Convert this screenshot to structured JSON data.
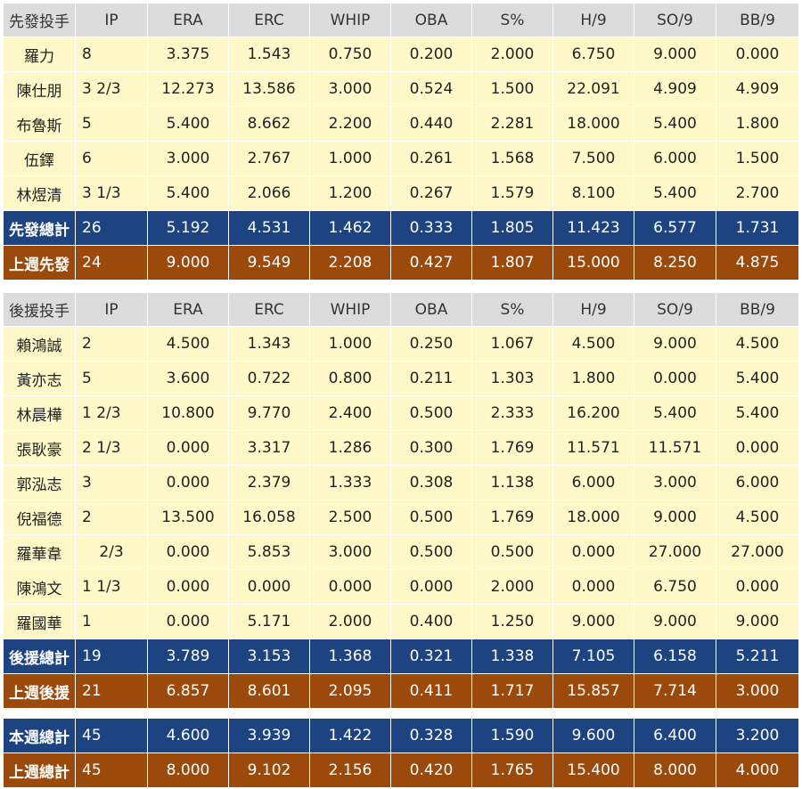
{
  "columns": [
    "IP",
    "ERA",
    "ERC",
    "WHIP",
    "OBA",
    "S%",
    "H/9",
    "SO/9",
    "BB/9"
  ],
  "starters": {
    "header_label": "先發投手",
    "rows": [
      {
        "name": "羅力",
        "IP": "8",
        "ERA": "3.375",
        "ERC": "1.543",
        "WHIP": "0.750",
        "OBA": "0.200",
        "S%": "2.000",
        "H/9": "6.750",
        "SO/9": "9.000",
        "BB/9": "0.000"
      },
      {
        "name": "陳仕朋",
        "IP": "3 2/3",
        "ERA": "12.273",
        "ERC": "13.586",
        "WHIP": "3.000",
        "OBA": "0.524",
        "S%": "1.500",
        "H/9": "22.091",
        "SO/9": "4.909",
        "BB/9": "4.909"
      },
      {
        "name": "布魯斯",
        "IP": "5",
        "ERA": "5.400",
        "ERC": "8.662",
        "WHIP": "2.200",
        "OBA": "0.440",
        "S%": "2.281",
        "H/9": "18.000",
        "SO/9": "5.400",
        "BB/9": "1.800"
      },
      {
        "name": "伍鐸",
        "IP": "6",
        "ERA": "3.000",
        "ERC": "2.767",
        "WHIP": "1.000",
        "OBA": "0.261",
        "S%": "1.568",
        "H/9": "7.500",
        "SO/9": "6.000",
        "BB/9": "1.500"
      },
      {
        "name": "林煜清",
        "IP": "3 1/3",
        "ERA": "5.400",
        "ERC": "2.066",
        "WHIP": "1.200",
        "OBA": "0.267",
        "S%": "1.579",
        "H/9": "8.100",
        "SO/9": "5.400",
        "BB/9": "2.700"
      }
    ],
    "total": {
      "name": "先發總計",
      "IP": "26",
      "ERA": "5.192",
      "ERC": "4.531",
      "WHIP": "1.462",
      "OBA": "0.333",
      "S%": "1.805",
      "H/9": "11.423",
      "SO/9": "6.577",
      "BB/9": "1.731"
    },
    "last_week": {
      "name": "上週先發",
      "IP": "24",
      "ERA": "9.000",
      "ERC": "9.549",
      "WHIP": "2.208",
      "OBA": "0.427",
      "S%": "1.807",
      "H/9": "15.000",
      "SO/9": "8.250",
      "BB/9": "4.875"
    }
  },
  "relievers": {
    "header_label": "後援投手",
    "rows": [
      {
        "name": "賴鴻誠",
        "IP": "2",
        "ERA": "4.500",
        "ERC": "1.343",
        "WHIP": "1.000",
        "OBA": "0.250",
        "S%": "1.067",
        "H/9": "4.500",
        "SO/9": "9.000",
        "BB/9": "4.500"
      },
      {
        "name": "黃亦志",
        "IP": "5",
        "ERA": "3.600",
        "ERC": "0.722",
        "WHIP": "0.800",
        "OBA": "0.211",
        "S%": "1.303",
        "H/9": "1.800",
        "SO/9": "0.000",
        "BB/9": "5.400"
      },
      {
        "name": "林晨樺",
        "IP": "1 2/3",
        "ERA": "10.800",
        "ERC": "9.770",
        "WHIP": "2.400",
        "OBA": "0.500",
        "S%": "2.333",
        "H/9": "16.200",
        "SO/9": "5.400",
        "BB/9": "5.400"
      },
      {
        "name": "張耿豪",
        "IP": "2 1/3",
        "ERA": "0.000",
        "ERC": "3.317",
        "WHIP": "1.286",
        "OBA": "0.300",
        "S%": "1.769",
        "H/9": "11.571",
        "SO/9": "11.571",
        "BB/9": "0.000"
      },
      {
        "name": "郭泓志",
        "IP": "3",
        "ERA": "0.000",
        "ERC": "2.379",
        "WHIP": "1.333",
        "OBA": "0.308",
        "S%": "1.138",
        "H/9": "6.000",
        "SO/9": "3.000",
        "BB/9": "6.000"
      },
      {
        "name": "倪福德",
        "IP": "2",
        "ERA": "13.500",
        "ERC": "16.058",
        "WHIP": "2.500",
        "OBA": "0.500",
        "S%": "1.769",
        "H/9": "18.000",
        "SO/9": "9.000",
        "BB/9": "4.500"
      },
      {
        "name": "羅華韋",
        "IP": "2/3",
        "ERA": "0.000",
        "ERC": "5.853",
        "WHIP": "3.000",
        "OBA": "0.500",
        "S%": "0.500",
        "H/9": "0.000",
        "SO/9": "27.000",
        "BB/9": "27.000"
      },
      {
        "name": "陳鴻文",
        "IP": "1 1/3",
        "ERA": "0.000",
        "ERC": "0.000",
        "WHIP": "0.000",
        "OBA": "0.000",
        "S%": "2.000",
        "H/9": "0.000",
        "SO/9": "6.750",
        "BB/9": "0.000"
      },
      {
        "name": "羅國華",
        "IP": "1",
        "ERA": "0.000",
        "ERC": "5.171",
        "WHIP": "2.000",
        "OBA": "0.400",
        "S%": "1.250",
        "H/9": "9.000",
        "SO/9": "9.000",
        "BB/9": "9.000"
      }
    ],
    "total": {
      "name": "後援總計",
      "IP": "19",
      "ERA": "3.789",
      "ERC": "3.153",
      "WHIP": "1.368",
      "OBA": "0.321",
      "S%": "1.338",
      "H/9": "7.105",
      "SO/9": "6.158",
      "BB/9": "5.211"
    },
    "last_week": {
      "name": "上週後援",
      "IP": "21",
      "ERA": "6.857",
      "ERC": "8.601",
      "WHIP": "2.095",
      "OBA": "0.411",
      "S%": "1.717",
      "H/9": "15.857",
      "SO/9": "7.714",
      "BB/9": "3.000"
    }
  },
  "weekly": {
    "this_week": {
      "name": "本週總計",
      "IP": "45",
      "ERA": "4.600",
      "ERC": "3.939",
      "WHIP": "1.422",
      "OBA": "0.328",
      "S%": "1.590",
      "H/9": "9.600",
      "SO/9": "6.400",
      "BB/9": "3.200"
    },
    "last_week": {
      "name": "上週總計",
      "IP": "45",
      "ERA": "8.000",
      "ERC": "9.102",
      "WHIP": "2.156",
      "OBA": "0.420",
      "S%": "1.765",
      "H/9": "15.400",
      "SO/9": "8.000",
      "BB/9": "4.000"
    }
  },
  "colors": {
    "header_bg": "#dcdcdc",
    "player_row_bg": "#fff9c9",
    "total_row_bg": "#1d4380",
    "last_week_row_bg": "#9b4a0c"
  }
}
